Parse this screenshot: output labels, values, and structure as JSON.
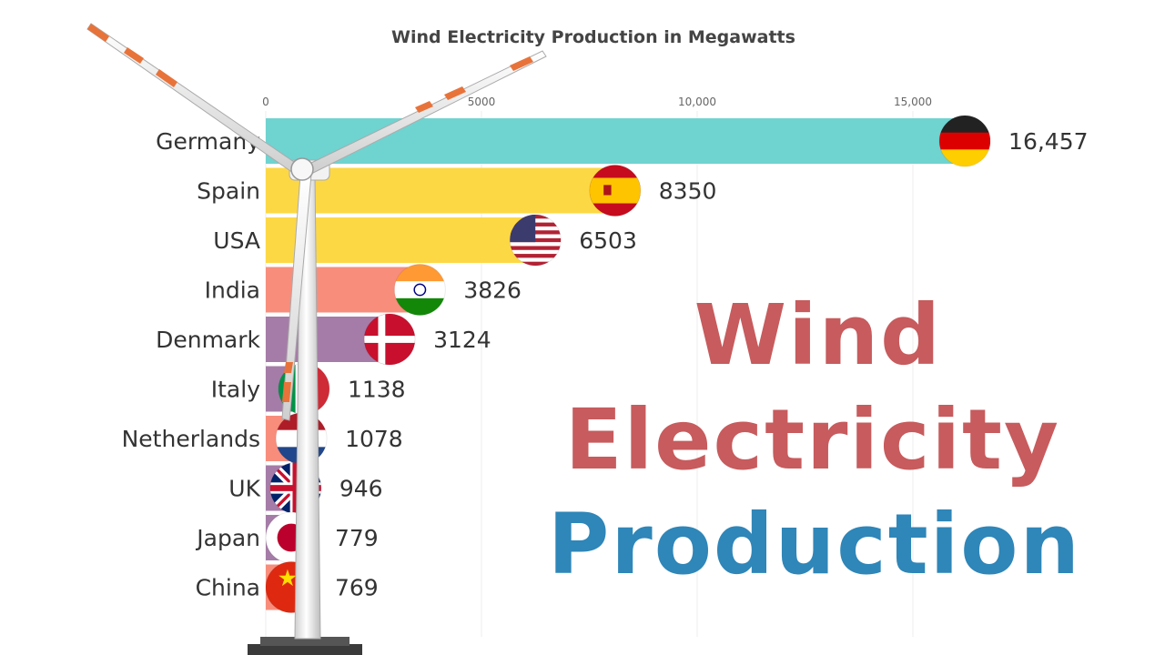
{
  "chart_data": {
    "type": "bar",
    "orientation": "horizontal",
    "title": "Wind Electricity Production in Megawatts",
    "x_ticks": [
      0,
      5000,
      10000,
      15000
    ],
    "x_tick_labels": [
      "0",
      "5000",
      "10,000",
      "15,000"
    ],
    "xlim": [
      0,
      18000
    ],
    "categories": [
      "Germany",
      "Spain",
      "USA",
      "India",
      "Denmark",
      "Italy",
      "Netherlands",
      "UK",
      "Japan",
      "China"
    ],
    "values": [
      16457,
      8350,
      6503,
      3826,
      3124,
      1138,
      1078,
      946,
      779,
      769
    ],
    "value_labels": [
      "16,457",
      "8350",
      "6503",
      "3826",
      "3124",
      "1138",
      "1078",
      "946",
      "779",
      "769"
    ],
    "bar_colors": [
      "#6fd3d0",
      "#fdd845",
      "#fdd845",
      "#f88d7c",
      "#a57ca7",
      "#a57ca7",
      "#f88d7c",
      "#a57ca7",
      "#a57ca7",
      "#f88d7c"
    ],
    "flags": [
      "germany-flag",
      "spain-flag",
      "usa-flag",
      "india-flag",
      "denmark-flag",
      "italy-flag",
      "netherlands-flag",
      "uk-flag",
      "japan-flag",
      "china-flag"
    ],
    "grid": true
  },
  "headline": {
    "line1": "Wind",
    "line2": "Electricity",
    "line3": "Production",
    "color_primary": "#c75b5d",
    "color_secondary": "#2f86b8"
  },
  "overlay": {
    "icon": "wind-turbine-icon"
  }
}
